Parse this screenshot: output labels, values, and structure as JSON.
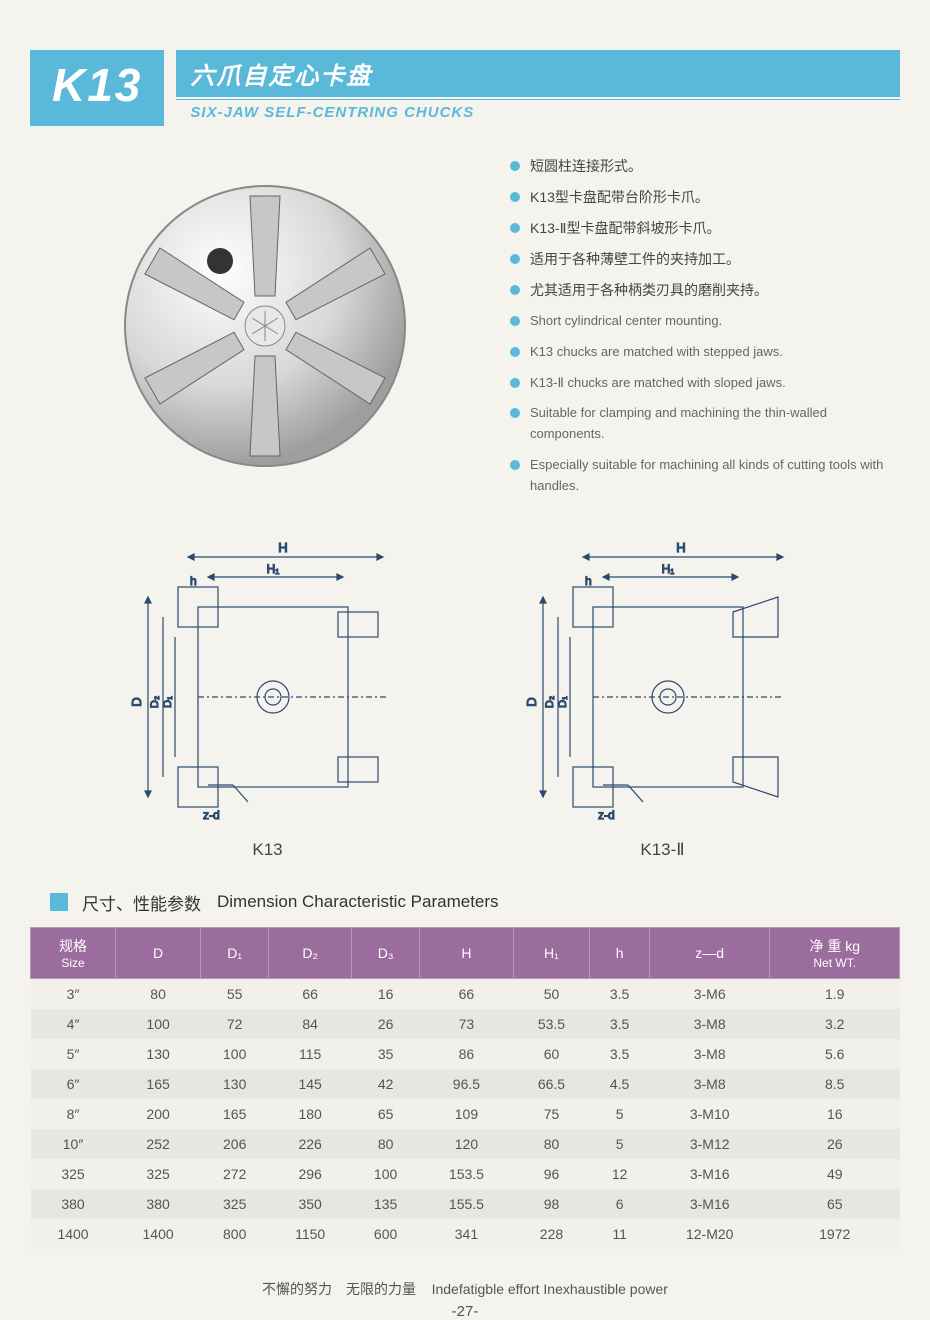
{
  "header": {
    "badge": "K13",
    "title_cn": "六爪自定心卡盘",
    "title_en": "SIX-JAW SELF-CENTRING CHUCKS"
  },
  "features_cn": [
    "短圆柱连接形式。",
    "K13型卡盘配带台阶形卡爪。",
    "K13-Ⅱ型卡盘配带斜坡形卡爪。",
    "适用于各种薄壁工件的夹持加工。",
    "尤其适用于各种柄类刃具的磨削夹持。"
  ],
  "features_en": [
    "Short cylindrical center mounting.",
    "K13 chucks are matched with stepped jaws.",
    "K13-Ⅱ chucks are matched with sloped jaws.",
    "Suitable for clamping and machining the thin-walled components.",
    "Especially suitable for machining all kinds of cutting tools with handles."
  ],
  "diagram_labels": {
    "left": "K13",
    "right": "K13-Ⅱ"
  },
  "diagram_dims": {
    "H": "H",
    "H1": "H₁",
    "h": "h",
    "D": "D",
    "D1": "D₁",
    "D2": "D₂",
    "zd": "z-d"
  },
  "section": {
    "title_cn": "尺寸、性能参数",
    "title_en": "Dimension  Characteristic Parameters"
  },
  "table": {
    "header_bg": "#9b6d9e",
    "header_fg": "#ffffff",
    "row_odd_bg": "#f2f0ea",
    "row_even_bg": "#e8e6e0",
    "columns": [
      {
        "label": "规格",
        "sub": "Size"
      },
      {
        "label": "D",
        "sub": ""
      },
      {
        "label": "D₁",
        "sub": ""
      },
      {
        "label": "D₂",
        "sub": ""
      },
      {
        "label": "D₃",
        "sub": ""
      },
      {
        "label": "H",
        "sub": ""
      },
      {
        "label": "H₁",
        "sub": ""
      },
      {
        "label": "h",
        "sub": ""
      },
      {
        "label": "z—d",
        "sub": ""
      },
      {
        "label": "净 重 kg",
        "sub": "Net WT."
      }
    ],
    "rows": [
      [
        "3″",
        "80",
        "55",
        "66",
        "16",
        "66",
        "50",
        "3.5",
        "3-M6",
        "1.9"
      ],
      [
        "4″",
        "100",
        "72",
        "84",
        "26",
        "73",
        "53.5",
        "3.5",
        "3-M8",
        "3.2"
      ],
      [
        "5″",
        "130",
        "100",
        "115",
        "35",
        "86",
        "60",
        "3.5",
        "3-M8",
        "5.6"
      ],
      [
        "6″",
        "165",
        "130",
        "145",
        "42",
        "96.5",
        "66.5",
        "4.5",
        "3-M8",
        "8.5"
      ],
      [
        "8″",
        "200",
        "165",
        "180",
        "65",
        "109",
        "75",
        "5",
        "3-M10",
        "16"
      ],
      [
        "10″",
        "252",
        "206",
        "226",
        "80",
        "120",
        "80",
        "5",
        "3-M12",
        "26"
      ],
      [
        "325",
        "325",
        "272",
        "296",
        "100",
        "153.5",
        "96",
        "12",
        "3-M16",
        "49"
      ],
      [
        "380",
        "380",
        "325",
        "350",
        "135",
        "155.5",
        "98",
        "6",
        "3-M16",
        "65"
      ],
      [
        "1400",
        "1400",
        "800",
        "1150",
        "600",
        "341",
        "228",
        "11",
        "12-M20",
        "1972"
      ]
    ]
  },
  "footer": {
    "motto_cn": "不懈的努力　无限的力量",
    "motto_en": "Indefatigble effort  Inexhaustible power",
    "page": "-27-"
  },
  "colors": {
    "accent": "#5ab9d9",
    "page_bg": "#f5f3ee",
    "diagram_stroke": "#2b4a6e"
  }
}
